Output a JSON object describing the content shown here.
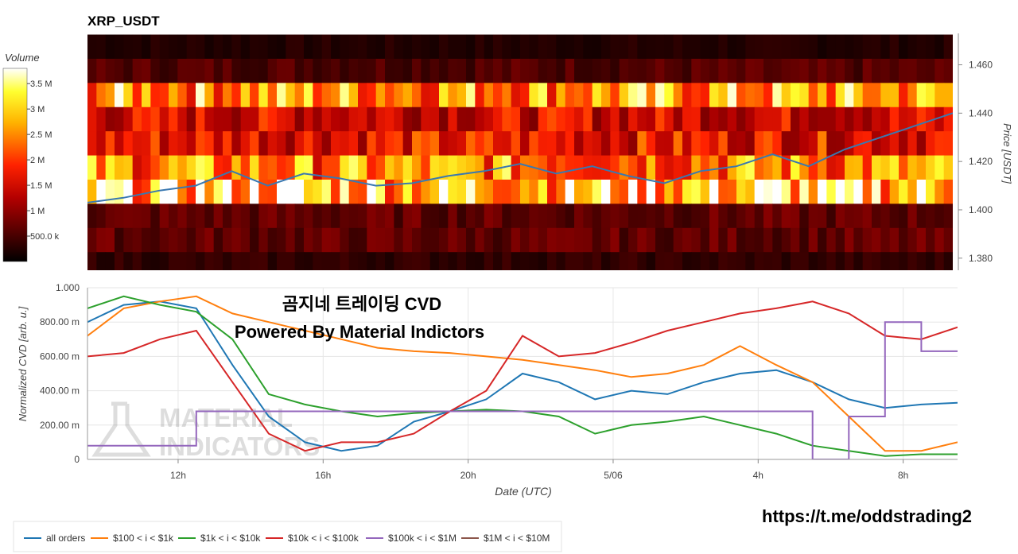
{
  "chart_data": [
    {
      "type": "heatmap",
      "title": "XRP_USDT",
      "ylabel": "Price [USDT]",
      "ylim": [
        1.375,
        1.473
      ],
      "y_ticks": [
        "1.460",
        "1.440",
        "1.420",
        "1.400",
        "1.380"
      ],
      "y_tick_values": [
        1.46,
        1.44,
        1.42,
        1.4,
        1.38
      ],
      "colorbar": {
        "label": "Volume",
        "ticks": [
          "3.5 M",
          "3 M",
          "2.5 M",
          "2 M",
          "1.5 M",
          "1 M",
          "500.0 k"
        ],
        "tick_values": [
          3500000,
          3000000,
          2500000,
          2000000,
          1500000,
          1000000,
          500000
        ],
        "range": [
          0,
          3800000
        ]
      },
      "row_price_bands": [
        1.4675,
        1.4575,
        1.4475,
        1.4375,
        1.4275,
        1.4175,
        1.4075,
        1.3975,
        1.3875,
        1.3775
      ],
      "row_volume_levels_millions": [
        0.25,
        0.6,
        2.8,
        1.6,
        1.8,
        2.6,
        3.2,
        0.7,
        0.7,
        0.35
      ],
      "price_series": {
        "name": "price",
        "color": "#3a78b0",
        "x_hours": [
          9.5,
          10.5,
          11.5,
          12.5,
          13.5,
          14.5,
          15.5,
          16.5,
          17.5,
          18.5,
          19.5,
          20.5,
          21.5,
          22.5,
          23.5,
          24.5,
          25.5,
          26.5,
          27.5,
          28.5,
          29.5,
          30.5,
          31.5,
          32.5,
          33.5
        ],
        "values": [
          1.403,
          1.405,
          1.408,
          1.41,
          1.416,
          1.41,
          1.415,
          1.413,
          1.41,
          1.411,
          1.414,
          1.416,
          1.419,
          1.415,
          1.418,
          1.414,
          1.411,
          1.416,
          1.418,
          1.423,
          1.418,
          1.425,
          1.43,
          1.435,
          1.44
        ]
      }
    },
    {
      "type": "line",
      "xlabel": "Date (UTC)",
      "ylabel": "Normalized CVD [arb. u.]",
      "ylim": [
        0,
        1.0
      ],
      "xlim_hours": [
        9.5,
        33.5
      ],
      "x_ticks": [
        "12h",
        "16h",
        "20h",
        "5/06",
        "4h",
        "8h"
      ],
      "x_tick_hours": [
        12,
        16,
        20,
        24,
        28,
        32
      ],
      "y_ticks": [
        "0",
        "200.00 m",
        "400.00 m",
        "600.00 m",
        "800.00 m",
        "1.000"
      ],
      "y_tick_values": [
        0,
        0.2,
        0.4,
        0.6,
        0.8,
        1.0
      ],
      "x_hours": [
        9.5,
        10.5,
        11.5,
        12.5,
        13.5,
        14.5,
        15.5,
        16.5,
        17.5,
        18.5,
        19.5,
        20.5,
        21.5,
        22.5,
        23.5,
        24.5,
        25.5,
        26.5,
        27.5,
        28.5,
        29.5,
        30.5,
        31.5,
        32.5,
        33.5
      ],
      "series": [
        {
          "name": "all orders",
          "color": "#1f77b4",
          "values": [
            0.8,
            0.9,
            0.92,
            0.88,
            0.55,
            0.25,
            0.1,
            0.05,
            0.08,
            0.22,
            0.28,
            0.35,
            0.5,
            0.45,
            0.35,
            0.4,
            0.38,
            0.45,
            0.5,
            0.52,
            0.45,
            0.35,
            0.3,
            0.32,
            0.33
          ]
        },
        {
          "name": "$100 < i < $1k",
          "color": "#ff7f0e",
          "values": [
            0.72,
            0.88,
            0.92,
            0.95,
            0.85,
            0.8,
            0.75,
            0.7,
            0.65,
            0.63,
            0.62,
            0.6,
            0.58,
            0.55,
            0.52,
            0.48,
            0.5,
            0.55,
            0.66,
            0.55,
            0.45,
            0.25,
            0.05,
            0.05,
            0.1
          ]
        },
        {
          "name": "$1k < i < $10k",
          "color": "#2ca02c",
          "values": [
            0.88,
            0.95,
            0.9,
            0.86,
            0.7,
            0.38,
            0.32,
            0.28,
            0.25,
            0.27,
            0.28,
            0.29,
            0.28,
            0.25,
            0.15,
            0.2,
            0.22,
            0.25,
            0.2,
            0.15,
            0.08,
            0.05,
            0.02,
            0.03,
            0.03
          ]
        },
        {
          "name": "$10k < i < $100k",
          "color": "#d62728",
          "values": [
            0.6,
            0.62,
            0.7,
            0.75,
            0.45,
            0.15,
            0.05,
            0.1,
            0.1,
            0.15,
            0.28,
            0.4,
            0.72,
            0.6,
            0.62,
            0.68,
            0.75,
            0.8,
            0.85,
            0.88,
            0.92,
            0.85,
            0.72,
            0.7,
            0.77
          ]
        },
        {
          "name": "$100k < i < $1M",
          "color": "#9467bd",
          "values": [
            0.08,
            0.08,
            0.08,
            0.28,
            0.28,
            0.28,
            0.28,
            0.28,
            0.28,
            0.28,
            0.28,
            0.28,
            0.28,
            0.28,
            0.28,
            0.28,
            0.28,
            0.28,
            0.28,
            0.28,
            0.0,
            0.25,
            0.8,
            0.63,
            0.63
          ]
        },
        {
          "name": "$1M < i < $10M",
          "color": "#8c564b",
          "values": []
        }
      ]
    }
  ],
  "overlay": {
    "title_line1": "곰지네 트레이딩 CVD",
    "title_line2": "Powered By Material Indictors",
    "watermark_line1": "MATERIAL",
    "watermark_line2": "INDICATORS",
    "link": "https://t.me/oddstrading2"
  }
}
